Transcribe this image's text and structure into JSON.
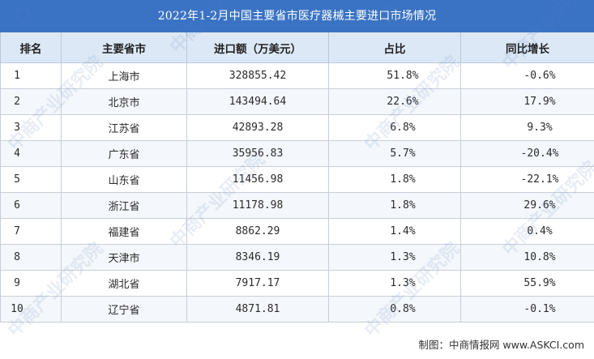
{
  "title": "2022年1-2月中国主要省市医疗器械主要进口市场情况",
  "watermark": "中商产业研究院",
  "headers": [
    "排名",
    "主要省市",
    "进口额（万美元）",
    "占比",
    "同比增长"
  ],
  "rows": [
    {
      "rank": "1",
      "region": "上海市",
      "amount": "328855.42",
      "share": "51.8%",
      "yoy": "-0.6%"
    },
    {
      "rank": "2",
      "region": "北京市",
      "amount": "143494.64",
      "share": "22.6%",
      "yoy": "17.9%"
    },
    {
      "rank": "3",
      "region": "江苏省",
      "amount": "42893.28",
      "share": "6.8%",
      "yoy": "9.3%"
    },
    {
      "rank": "4",
      "region": "广东省",
      "amount": "35956.83",
      "share": "5.7%",
      "yoy": "-20.4%"
    },
    {
      "rank": "5",
      "region": "山东省",
      "amount": "11456.98",
      "share": "1.8%",
      "yoy": "-22.1%"
    },
    {
      "rank": "6",
      "region": "浙江省",
      "amount": "11178.98",
      "share": "1.8%",
      "yoy": "29.6%"
    },
    {
      "rank": "7",
      "region": "福建省",
      "amount": "8862.29",
      "share": "1.4%",
      "yoy": "0.4%"
    },
    {
      "rank": "8",
      "region": "天津市",
      "amount": "8346.19",
      "share": "1.3%",
      "yoy": "10.8%"
    },
    {
      "rank": "9",
      "region": "湖北省",
      "amount": "7917.17",
      "share": "1.3%",
      "yoy": "55.9%"
    },
    {
      "rank": "10",
      "region": "辽宁省",
      "amount": "4871.81",
      "share": "0.8%",
      "yoy": "-0.1%"
    }
  ],
  "footer": "制图：中商情报网 www.ASKCI.com",
  "colors": {
    "title_bg": "#3a73c4",
    "header_bg": "#dde8f6",
    "row_alt_bg": "#f4f7fb"
  }
}
